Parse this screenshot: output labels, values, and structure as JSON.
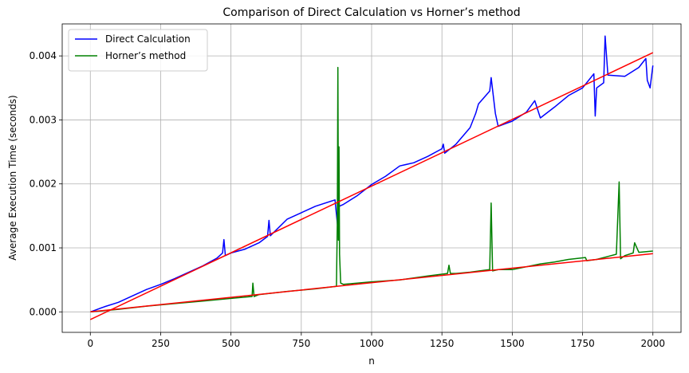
{
  "chart_data": {
    "type": "line",
    "title": "Comparison of Direct Calculation vs Horner’s method",
    "xlabel": "n",
    "ylabel": "Average Execution Time (seconds)",
    "xlim": [
      -100,
      2100
    ],
    "ylim": [
      -0.00032,
      0.0045
    ],
    "xticks": [
      0,
      250,
      500,
      750,
      1000,
      1250,
      1500,
      1750,
      2000
    ],
    "xtick_labels": [
      "0",
      "250",
      "500",
      "750",
      "1000",
      "1250",
      "1500",
      "1750",
      "2000"
    ],
    "yticks": [
      0,
      0.001,
      0.002,
      0.003,
      0.004
    ],
    "ytick_labels": [
      "0.000",
      "0.001",
      "0.002",
      "0.003",
      "0.004"
    ],
    "grid": true,
    "legend_position": "top-left",
    "series": [
      {
        "name": "Direct Calculation",
        "color": "#0000ff",
        "x": [
          1,
          50,
          100,
          150,
          200,
          250,
          300,
          350,
          400,
          450,
          470,
          475,
          480,
          500,
          550,
          600,
          630,
          635,
          640,
          700,
          750,
          800,
          870,
          880,
          885,
          900,
          950,
          1000,
          1050,
          1100,
          1150,
          1200,
          1250,
          1255,
          1260,
          1300,
          1350,
          1370,
          1380,
          1400,
          1420,
          1425,
          1440,
          1450,
          1500,
          1550,
          1580,
          1600,
          1650,
          1700,
          1750,
          1790,
          1795,
          1800,
          1825,
          1830,
          1840,
          1900,
          1950,
          1975,
          1980,
          1990,
          2000
        ],
        "y": [
          0.0,
          8e-05,
          0.00015,
          0.00025,
          0.00035,
          0.00043,
          0.00052,
          0.00062,
          0.00072,
          0.00084,
          0.00092,
          0.00113,
          0.00088,
          0.00092,
          0.00098,
          0.00108,
          0.00118,
          0.00143,
          0.00119,
          0.00145,
          0.00155,
          0.00165,
          0.00175,
          0.0013,
          0.00165,
          0.00168,
          0.00182,
          0.00199,
          0.00212,
          0.00228,
          0.00233,
          0.00243,
          0.00255,
          0.00262,
          0.00248,
          0.00262,
          0.00288,
          0.0031,
          0.00325,
          0.00335,
          0.00345,
          0.00366,
          0.0031,
          0.0029,
          0.00298,
          0.00312,
          0.0033,
          0.00303,
          0.0032,
          0.00338,
          0.0035,
          0.00372,
          0.00306,
          0.0035,
          0.00358,
          0.00431,
          0.0037,
          0.00368,
          0.00382,
          0.00396,
          0.00362,
          0.0035,
          0.00385
        ]
      },
      {
        "name": "Horner’s method",
        "color": "#008000",
        "x": [
          1,
          100,
          200,
          300,
          400,
          500,
          575,
          578,
          582,
          600,
          700,
          800,
          875,
          878,
          880,
          882,
          884,
          886,
          890,
          900,
          1000,
          1100,
          1200,
          1270,
          1275,
          1280,
          1300,
          1350,
          1400,
          1420,
          1425,
          1430,
          1450,
          1500,
          1600,
          1650,
          1700,
          1760,
          1765,
          1800,
          1870,
          1880,
          1885,
          1900,
          1930,
          1935,
          1950,
          2000
        ],
        "y": [
          0.0,
          4e-05,
          9e-05,
          0.00013,
          0.00017,
          0.00021,
          0.00024,
          0.00045,
          0.00024,
          0.00027,
          0.00032,
          0.00036,
          0.0004,
          0.0014,
          0.00382,
          0.00112,
          0.00258,
          0.0009,
          0.00045,
          0.00043,
          0.00047,
          0.0005,
          0.00056,
          0.0006,
          0.00073,
          0.0006,
          0.0006,
          0.00062,
          0.00065,
          0.00066,
          0.0017,
          0.00064,
          0.00066,
          0.00066,
          0.00075,
          0.00078,
          0.00082,
          0.00085,
          0.0008,
          0.00082,
          0.0009,
          0.00203,
          0.00083,
          0.00088,
          0.00092,
          0.00108,
          0.00093,
          0.00095
        ]
      },
      {
        "name": "",
        "color": "#ff0000",
        "x": [
          0,
          2000
        ],
        "y": [
          -0.00012,
          0.00405
        ]
      },
      {
        "name": "",
        "color": "#ff0000",
        "x": [
          0,
          2000
        ],
        "y": [
          0.0,
          0.00091
        ]
      }
    ]
  }
}
